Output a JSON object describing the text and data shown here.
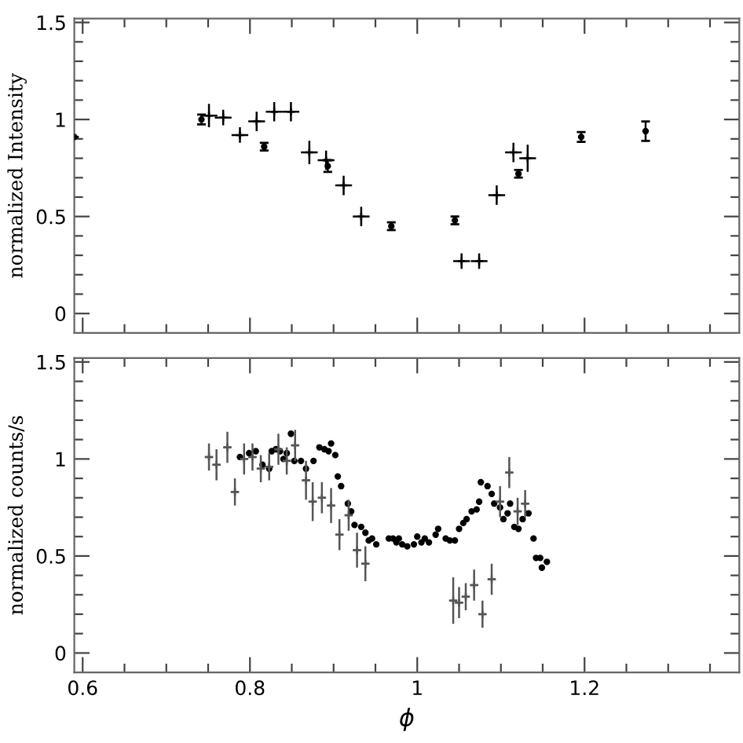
{
  "chart_data": [
    {
      "type": "scatter",
      "ylabel": "normalized Intensity",
      "xlim": [
        0.59,
        1.385
      ],
      "ylim": [
        -0.1,
        1.52
      ],
      "tick_labels": "y",
      "grid": false,
      "xticks": [
        0.6,
        {
          "value": 0.65,
          "label": null
        },
        {
          "value": 0.7,
          "label": null
        },
        {
          "value": 0.75,
          "label": null
        },
        0.8,
        {
          "value": 0.85,
          "label": null
        },
        {
          "value": 0.9,
          "label": null
        },
        {
          "value": 0.95,
          "label": null
        },
        1,
        {
          "value": 1.05,
          "label": null
        },
        {
          "value": 1.1,
          "label": null
        },
        {
          "value": 1.15,
          "label": null
        },
        1.2,
        {
          "value": 1.25,
          "label": null
        },
        {
          "value": 1.3,
          "label": null
        },
        {
          "value": 1.35,
          "label": null
        }
      ],
      "yticks": [
        0,
        {
          "value": 0.1,
          "label": null
        },
        {
          "value": 0.2,
          "label": null
        },
        {
          "value": 0.3,
          "label": null
        },
        {
          "value": 0.4,
          "label": null
        },
        0.5,
        {
          "value": 0.6,
          "label": null
        },
        {
          "value": 0.7,
          "label": null
        },
        {
          "value": 0.8,
          "label": null
        },
        {
          "value": 0.9,
          "label": null
        },
        1,
        {
          "value": 1.1,
          "label": null
        },
        {
          "value": 1.2,
          "label": null
        },
        {
          "value": 1.3,
          "label": null
        },
        {
          "value": 1.4,
          "label": null
        },
        1.5
      ],
      "series": [
        {
          "color": "#000000",
          "marker": "circle",
          "x": [
            0.59,
            0.742,
            0.817,
            0.893,
            0.969,
            1.045,
            1.121,
            1.196,
            1.273
          ],
          "values": [
            0.91,
            1.0,
            0.86,
            0.76,
            0.45,
            0.48,
            0.72,
            0.91,
            0.94
          ],
          "errors": [
            null,
            0.025,
            0.02,
            0.03,
            0.02,
            0.02,
            0.02,
            0.025,
            0.05
          ]
        },
        {
          "color": "#000000",
          "marker": "cross",
          "x": [
            0.751,
            0.768,
            0.788,
            0.808,
            0.829,
            0.849,
            0.871,
            0.891,
            0.912,
            0.933,
            1.053,
            1.074,
            1.095,
            1.115,
            1.132
          ],
          "values": [
            1.02,
            1.01,
            0.92,
            0.99,
            1.04,
            1.04,
            0.83,
            0.79,
            0.66,
            0.5,
            0.27,
            0.27,
            0.61,
            0.83,
            0.8
          ],
          "errors": [
            0.06,
            0.04,
            0.04,
            0.05,
            0.05,
            0.05,
            0.06,
            0.05,
            0.05,
            0.05,
            0.04,
            0.04,
            0.05,
            0.05,
            0.07
          ],
          "xerrors": [
            0.01,
            0.01,
            0.01,
            0.01,
            0.01,
            0.01,
            0.01,
            0.01,
            0.01,
            0.01,
            0.01,
            0.01,
            0.01,
            0.01,
            0.01
          ]
        }
      ]
    },
    {
      "type": "scatter",
      "ylabel": "normalized counts/s",
      "xlabel": "ϕ",
      "xlim": [
        0.59,
        1.385
      ],
      "ylim": [
        -0.1,
        1.52
      ],
      "grid": false,
      "xticks": [
        0.6,
        {
          "value": 0.65,
          "label": null
        },
        {
          "value": 0.7,
          "label": null
        },
        {
          "value": 0.75,
          "label": null
        },
        0.8,
        {
          "value": 0.85,
          "label": null
        },
        {
          "value": 0.9,
          "label": null
        },
        {
          "value": 0.95,
          "label": null
        },
        1,
        {
          "value": 1.05,
          "label": null
        },
        {
          "value": 1.1,
          "label": null
        },
        {
          "value": 1.15,
          "label": null
        },
        1.2,
        {
          "value": 1.25,
          "label": null
        },
        {
          "value": 1.3,
          "label": null
        },
        {
          "value": 1.35,
          "label": null
        }
      ],
      "yticks": [
        0,
        {
          "value": 0.1,
          "label": null
        },
        {
          "value": 0.2,
          "label": null
        },
        {
          "value": 0.3,
          "label": null
        },
        {
          "value": 0.4,
          "label": null
        },
        0.5,
        {
          "value": 0.6,
          "label": null
        },
        {
          "value": 0.7,
          "label": null
        },
        {
          "value": 0.8,
          "label": null
        },
        {
          "value": 0.9,
          "label": null
        },
        1,
        {
          "value": 1.1,
          "label": null
        },
        {
          "value": 1.2,
          "label": null
        },
        {
          "value": 1.3,
          "label": null
        },
        {
          "value": 1.4,
          "label": null
        },
        1.5
      ],
      "series": [
        {
          "color": "#555555",
          "marker": "cross",
          "x": [
            0.751,
            0.76,
            0.773,
            0.782,
            0.793,
            0.803,
            0.813,
            0.823,
            0.834,
            0.844,
            0.854,
            0.867,
            0.875,
            0.886,
            0.897,
            0.907,
            0.918,
            0.928,
            0.938,
            1.043,
            1.05,
            1.058,
            1.068,
            1.078,
            1.089,
            1.099,
            1.11,
            1.12,
            1.129
          ],
          "values": [
            1.01,
            0.97,
            1.06,
            0.83,
            1.0,
            1.01,
            0.95,
            0.96,
            1.05,
            0.99,
            1.07,
            0.89,
            0.78,
            0.8,
            0.76,
            0.61,
            0.71,
            0.53,
            0.46,
            0.27,
            0.26,
            0.29,
            0.35,
            0.2,
            0.38,
            0.78,
            0.93,
            0.73,
            0.77
          ],
          "errors": [
            0.07,
            0.08,
            0.08,
            0.07,
            0.08,
            0.07,
            0.07,
            0.07,
            0.08,
            0.07,
            0.08,
            0.1,
            0.1,
            0.08,
            0.09,
            0.08,
            0.08,
            0.09,
            0.09,
            0.12,
            0.08,
            0.07,
            0.08,
            0.07,
            0.08,
            0.08,
            0.08,
            0.07,
            0.07
          ],
          "xerrors": [
            0.005,
            0.005,
            0.005,
            0.005,
            0.005,
            0.005,
            0.005,
            0.005,
            0.005,
            0.005,
            0.005,
            0.005,
            0.005,
            0.005,
            0.005,
            0.005,
            0.005,
            0.005,
            0.005,
            0.005,
            0.005,
            0.005,
            0.005,
            0.005,
            0.005,
            0.005,
            0.005,
            0.005,
            0.005
          ]
        },
        {
          "color": "#000000",
          "marker": "circle",
          "x": [
            0.788,
            0.799,
            0.807,
            0.815,
            0.823,
            0.826,
            0.831,
            0.836,
            0.84,
            0.844,
            0.849,
            0.853,
            0.861,
            0.867,
            0.876,
            0.883,
            0.889,
            0.894,
            0.897,
            0.902,
            0.905,
            0.909,
            0.917,
            0.921,
            0.925,
            0.933,
            0.938,
            0.942,
            0.946,
            0.951,
            0.966,
            0.971,
            0.975,
            0.978,
            0.982,
            0.988,
            0.996,
            1.0,
            1.005,
            1.009,
            1.014,
            1.022,
            1.025,
            1.034,
            1.039,
            1.045,
            1.05,
            1.055,
            1.059,
            1.065,
            1.071,
            1.074,
            1.076,
            1.084,
            1.089,
            1.092,
            1.099,
            1.103,
            1.108,
            1.111,
            1.116,
            1.121,
            1.126,
            1.133,
            1.139,
            1.142,
            1.147,
            1.149,
            1.155
          ],
          "values": [
            1.01,
            1.03,
            1.04,
            0.97,
            0.95,
            1.04,
            1.05,
            1.04,
            1.0,
            1.03,
            1.13,
            0.99,
            0.99,
            0.95,
            0.99,
            1.06,
            1.05,
            1.04,
            1.08,
            1.02,
            0.91,
            0.86,
            0.77,
            0.73,
            0.66,
            0.65,
            0.62,
            0.58,
            0.59,
            0.56,
            0.59,
            0.59,
            0.57,
            0.59,
            0.56,
            0.55,
            0.56,
            0.6,
            0.57,
            0.59,
            0.57,
            0.61,
            0.64,
            0.59,
            0.58,
            0.58,
            0.64,
            0.67,
            0.69,
            0.73,
            0.74,
            0.78,
            0.88,
            0.86,
            0.82,
            0.77,
            0.75,
            0.69,
            0.72,
            0.77,
            0.65,
            0.64,
            0.69,
            0.72,
            0.59,
            0.49,
            0.49,
            0.44,
            0.47
          ]
        }
      ]
    }
  ]
}
